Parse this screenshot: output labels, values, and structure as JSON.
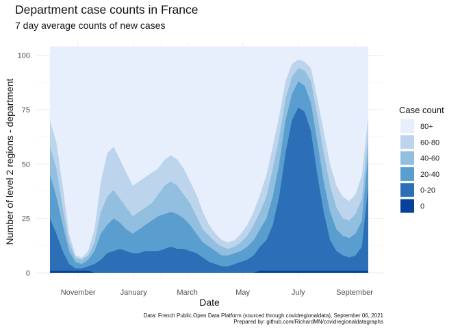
{
  "chart_data": {
    "type": "area",
    "stacked": true,
    "title": "Department case counts in France",
    "subtitle": "7 day average counts of new cases",
    "xlabel": "Date",
    "ylabel": "Number of level 2 regions - department",
    "caption": [
      "Data: French Public Open Data Platform (sourced through covidregionaldata), September 06, 2021",
      "Prepared by: github.com/RichardMN/covidregionaldatagraphs"
    ],
    "x_range": [
      "2020-10-01",
      "2021-09-16"
    ],
    "x_ticks": [
      {
        "label": "November",
        "date": "2020-11-01"
      },
      {
        "label": "January",
        "date": "2021-01-01"
      },
      {
        "label": "March",
        "date": "2021-03-01"
      },
      {
        "label": "May",
        "date": "2021-05-01"
      },
      {
        "label": "July",
        "date": "2021-07-01"
      },
      {
        "label": "September",
        "date": "2021-09-01"
      }
    ],
    "ylim": [
      0,
      104
    ],
    "y_ticks": [
      0,
      25,
      50,
      75,
      100
    ],
    "grid": true,
    "legend": {
      "title": "Case count",
      "placement": "right",
      "entries": [
        "80+",
        "60-80",
        "40-60",
        "20-40",
        "0-20",
        "0"
      ]
    },
    "series_colors": {
      "0": "#08419a",
      "0-20": "#2d6fb7",
      "20-40": "#5a9ecf",
      "40-60": "#92bfe0",
      "60-80": "#bdd5ec",
      "80+": "#e8effc"
    },
    "dates": [
      "2020-10-01",
      "2020-10-08",
      "2020-10-15",
      "2020-10-22",
      "2020-10-29",
      "2020-11-05",
      "2020-11-12",
      "2020-11-19",
      "2020-11-26",
      "2020-12-03",
      "2020-12-10",
      "2020-12-17",
      "2020-12-24",
      "2020-12-31",
      "2021-01-07",
      "2021-01-14",
      "2021-01-21",
      "2021-01-28",
      "2021-02-04",
      "2021-02-11",
      "2021-02-18",
      "2021-02-25",
      "2021-03-04",
      "2021-03-11",
      "2021-03-18",
      "2021-03-25",
      "2021-04-01",
      "2021-04-08",
      "2021-04-15",
      "2021-04-22",
      "2021-04-29",
      "2021-05-06",
      "2021-05-13",
      "2021-05-20",
      "2021-05-27",
      "2021-06-03",
      "2021-06-10",
      "2021-06-17",
      "2021-06-24",
      "2021-07-01",
      "2021-07-08",
      "2021-07-15",
      "2021-07-22",
      "2021-07-29",
      "2021-08-05",
      "2021-08-12",
      "2021-08-19",
      "2021-08-26",
      "2021-09-02",
      "2021-09-09",
      "2021-09-16"
    ],
    "cumulative_upper_bounds": {
      "0": [
        1,
        1,
        1,
        1,
        1,
        1,
        1,
        0,
        0,
        0,
        0,
        0,
        0,
        0,
        0,
        0,
        0,
        0,
        0,
        0,
        0,
        0,
        0,
        0,
        0,
        0,
        0,
        0,
        0,
        0,
        0,
        0,
        0,
        1,
        1,
        1,
        1,
        1,
        1,
        1,
        1,
        1,
        1,
        1,
        1,
        1,
        1,
        1,
        1,
        1,
        1
      ],
      "0-20": [
        25,
        18,
        10,
        4,
        2,
        2,
        3,
        4,
        6,
        9,
        10,
        11,
        10,
        9,
        9,
        10,
        10,
        10,
        11,
        12,
        11,
        11,
        10,
        9,
        7,
        5,
        4,
        3,
        3,
        4,
        5,
        6,
        8,
        12,
        15,
        22,
        35,
        55,
        70,
        76,
        74,
        65,
        45,
        28,
        15,
        10,
        8,
        7,
        8,
        12,
        40
      ],
      "20-40": [
        45,
        35,
        22,
        10,
        5,
        4,
        6,
        10,
        18,
        22,
        25,
        23,
        20,
        18,
        20,
        22,
        24,
        26,
        27,
        28,
        27,
        25,
        22,
        18,
        14,
        12,
        10,
        8,
        8,
        9,
        10,
        12,
        15,
        20,
        25,
        35,
        50,
        70,
        82,
        88,
        86,
        78,
        60,
        42,
        28,
        20,
        17,
        16,
        18,
        24,
        55
      ],
      "40-60": [
        58,
        48,
        30,
        14,
        7,
        6,
        8,
        14,
        28,
        35,
        38,
        34,
        30,
        26,
        28,
        30,
        32,
        36,
        40,
        42,
        40,
        36,
        32,
        26,
        20,
        17,
        14,
        12,
        11,
        12,
        14,
        17,
        22,
        28,
        35,
        48,
        62,
        80,
        90,
        94,
        93,
        88,
        72,
        55,
        40,
        30,
        25,
        24,
        27,
        34,
        63
      ],
      "60-80": [
        70,
        60,
        40,
        18,
        8,
        7,
        10,
        20,
        42,
        55,
        58,
        52,
        46,
        40,
        42,
        44,
        46,
        48,
        52,
        54,
        52,
        48,
        42,
        36,
        28,
        22,
        18,
        15,
        14,
        15,
        18,
        22,
        28,
        36,
        45,
        58,
        72,
        88,
        96,
        98,
        97,
        94,
        80,
        65,
        50,
        40,
        35,
        33,
        36,
        45,
        72
      ]
    }
  }
}
